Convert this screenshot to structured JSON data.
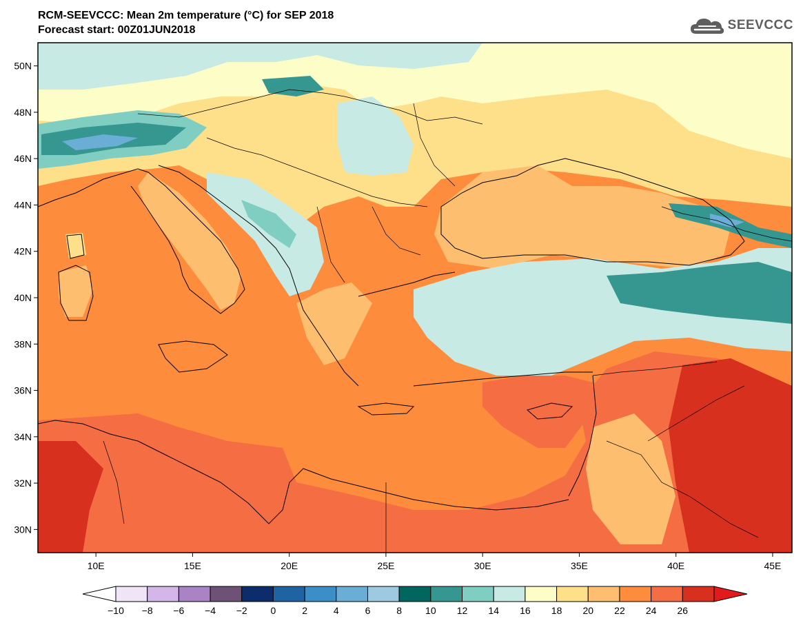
{
  "header": {
    "title": "RCM-SEEVCCC: Mean 2m temperature (°C) for SEP 2018",
    "subtitle": "Forecast start: 00Z01JUN2018"
  },
  "logo": {
    "text": "SEEVCCC",
    "icon": "cloud-icon",
    "color": "#5e5e5e"
  },
  "map": {
    "extent": {
      "lon_min": 7,
      "lon_max": 46,
      "lat_min": 29,
      "lat_max": 51
    },
    "lat_ticks": [
      {
        "value": 30,
        "label": "30N"
      },
      {
        "value": 32,
        "label": "32N"
      },
      {
        "value": 34,
        "label": "34N"
      },
      {
        "value": 36,
        "label": "36N"
      },
      {
        "value": 38,
        "label": "38N"
      },
      {
        "value": 40,
        "label": "40N"
      },
      {
        "value": 42,
        "label": "42N"
      },
      {
        "value": 44,
        "label": "44N"
      },
      {
        "value": 46,
        "label": "46N"
      },
      {
        "value": 48,
        "label": "48N"
      },
      {
        "value": 50,
        "label": "50N"
      }
    ],
    "lon_ticks": [
      {
        "value": 10,
        "label": "10E"
      },
      {
        "value": 15,
        "label": "15E"
      },
      {
        "value": 20,
        "label": "20E"
      },
      {
        "value": 25,
        "label": "25E"
      },
      {
        "value": 30,
        "label": "30E"
      },
      {
        "value": 35,
        "label": "35E"
      },
      {
        "value": 40,
        "label": "40E"
      },
      {
        "value": 45,
        "label": "45E"
      }
    ]
  },
  "colorbar": {
    "low_color": "#ffffff",
    "high_color": "#e31a1c",
    "colors": [
      "#efe5f6",
      "#d5b6e8",
      "#a983c4",
      "#6d5275",
      "#0c2c6c",
      "#1f63a3",
      "#3c8ec8",
      "#6aaed6",
      "#9ecae1",
      "#01665e",
      "#35978f",
      "#80cdc1",
      "#c7eae5",
      "#fdfdc8",
      "#fee08b",
      "#fdbf6f",
      "#fd8d3c",
      "#f46d43",
      "#d7301f"
    ],
    "ticks": [
      "−10",
      "−8",
      "−6",
      "−4",
      "−2",
      "0",
      "2",
      "4",
      "6",
      "8",
      "10",
      "12",
      "14",
      "16",
      "18",
      "20",
      "22",
      "24",
      "26"
    ]
  }
}
